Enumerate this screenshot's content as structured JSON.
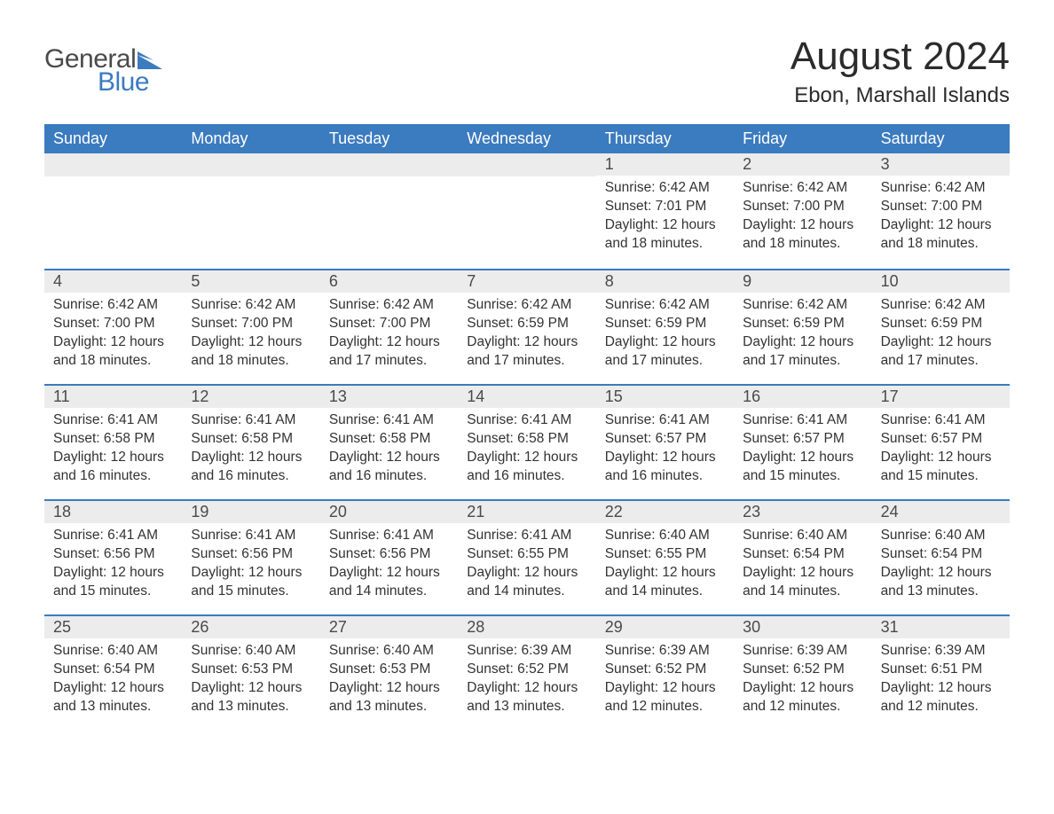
{
  "logo": {
    "text_general": "General",
    "text_blue": "Blue",
    "shape_color": "#3b7bbf"
  },
  "title": "August 2024",
  "location": "Ebon, Marshall Islands",
  "colors": {
    "header_bg": "#3b7bbf",
    "header_text": "#ffffff",
    "daynum_bg": "#ececec",
    "row_border": "#3b7bbf",
    "body_text": "#333333",
    "title_text": "#2b2b2b",
    "background": "#ffffff"
  },
  "day_headers": [
    "Sunday",
    "Monday",
    "Tuesday",
    "Wednesday",
    "Thursday",
    "Friday",
    "Saturday"
  ],
  "weeks": [
    [
      {
        "day": "",
        "sunrise": "",
        "sunset": "",
        "daylight": ""
      },
      {
        "day": "",
        "sunrise": "",
        "sunset": "",
        "daylight": ""
      },
      {
        "day": "",
        "sunrise": "",
        "sunset": "",
        "daylight": ""
      },
      {
        "day": "",
        "sunrise": "",
        "sunset": "",
        "daylight": ""
      },
      {
        "day": "1",
        "sunrise": "Sunrise: 6:42 AM",
        "sunset": "Sunset: 7:01 PM",
        "daylight": "Daylight: 12 hours and 18 minutes."
      },
      {
        "day": "2",
        "sunrise": "Sunrise: 6:42 AM",
        "sunset": "Sunset: 7:00 PM",
        "daylight": "Daylight: 12 hours and 18 minutes."
      },
      {
        "day": "3",
        "sunrise": "Sunrise: 6:42 AM",
        "sunset": "Sunset: 7:00 PM",
        "daylight": "Daylight: 12 hours and 18 minutes."
      }
    ],
    [
      {
        "day": "4",
        "sunrise": "Sunrise: 6:42 AM",
        "sunset": "Sunset: 7:00 PM",
        "daylight": "Daylight: 12 hours and 18 minutes."
      },
      {
        "day": "5",
        "sunrise": "Sunrise: 6:42 AM",
        "sunset": "Sunset: 7:00 PM",
        "daylight": "Daylight: 12 hours and 18 minutes."
      },
      {
        "day": "6",
        "sunrise": "Sunrise: 6:42 AM",
        "sunset": "Sunset: 7:00 PM",
        "daylight": "Daylight: 12 hours and 17 minutes."
      },
      {
        "day": "7",
        "sunrise": "Sunrise: 6:42 AM",
        "sunset": "Sunset: 6:59 PM",
        "daylight": "Daylight: 12 hours and 17 minutes."
      },
      {
        "day": "8",
        "sunrise": "Sunrise: 6:42 AM",
        "sunset": "Sunset: 6:59 PM",
        "daylight": "Daylight: 12 hours and 17 minutes."
      },
      {
        "day": "9",
        "sunrise": "Sunrise: 6:42 AM",
        "sunset": "Sunset: 6:59 PM",
        "daylight": "Daylight: 12 hours and 17 minutes."
      },
      {
        "day": "10",
        "sunrise": "Sunrise: 6:42 AM",
        "sunset": "Sunset: 6:59 PM",
        "daylight": "Daylight: 12 hours and 17 minutes."
      }
    ],
    [
      {
        "day": "11",
        "sunrise": "Sunrise: 6:41 AM",
        "sunset": "Sunset: 6:58 PM",
        "daylight": "Daylight: 12 hours and 16 minutes."
      },
      {
        "day": "12",
        "sunrise": "Sunrise: 6:41 AM",
        "sunset": "Sunset: 6:58 PM",
        "daylight": "Daylight: 12 hours and 16 minutes."
      },
      {
        "day": "13",
        "sunrise": "Sunrise: 6:41 AM",
        "sunset": "Sunset: 6:58 PM",
        "daylight": "Daylight: 12 hours and 16 minutes."
      },
      {
        "day": "14",
        "sunrise": "Sunrise: 6:41 AM",
        "sunset": "Sunset: 6:58 PM",
        "daylight": "Daylight: 12 hours and 16 minutes."
      },
      {
        "day": "15",
        "sunrise": "Sunrise: 6:41 AM",
        "sunset": "Sunset: 6:57 PM",
        "daylight": "Daylight: 12 hours and 16 minutes."
      },
      {
        "day": "16",
        "sunrise": "Sunrise: 6:41 AM",
        "sunset": "Sunset: 6:57 PM",
        "daylight": "Daylight: 12 hours and 15 minutes."
      },
      {
        "day": "17",
        "sunrise": "Sunrise: 6:41 AM",
        "sunset": "Sunset: 6:57 PM",
        "daylight": "Daylight: 12 hours and 15 minutes."
      }
    ],
    [
      {
        "day": "18",
        "sunrise": "Sunrise: 6:41 AM",
        "sunset": "Sunset: 6:56 PM",
        "daylight": "Daylight: 12 hours and 15 minutes."
      },
      {
        "day": "19",
        "sunrise": "Sunrise: 6:41 AM",
        "sunset": "Sunset: 6:56 PM",
        "daylight": "Daylight: 12 hours and 15 minutes."
      },
      {
        "day": "20",
        "sunrise": "Sunrise: 6:41 AM",
        "sunset": "Sunset: 6:56 PM",
        "daylight": "Daylight: 12 hours and 14 minutes."
      },
      {
        "day": "21",
        "sunrise": "Sunrise: 6:41 AM",
        "sunset": "Sunset: 6:55 PM",
        "daylight": "Daylight: 12 hours and 14 minutes."
      },
      {
        "day": "22",
        "sunrise": "Sunrise: 6:40 AM",
        "sunset": "Sunset: 6:55 PM",
        "daylight": "Daylight: 12 hours and 14 minutes."
      },
      {
        "day": "23",
        "sunrise": "Sunrise: 6:40 AM",
        "sunset": "Sunset: 6:54 PM",
        "daylight": "Daylight: 12 hours and 14 minutes."
      },
      {
        "day": "24",
        "sunrise": "Sunrise: 6:40 AM",
        "sunset": "Sunset: 6:54 PM",
        "daylight": "Daylight: 12 hours and 13 minutes."
      }
    ],
    [
      {
        "day": "25",
        "sunrise": "Sunrise: 6:40 AM",
        "sunset": "Sunset: 6:54 PM",
        "daylight": "Daylight: 12 hours and 13 minutes."
      },
      {
        "day": "26",
        "sunrise": "Sunrise: 6:40 AM",
        "sunset": "Sunset: 6:53 PM",
        "daylight": "Daylight: 12 hours and 13 minutes."
      },
      {
        "day": "27",
        "sunrise": "Sunrise: 6:40 AM",
        "sunset": "Sunset: 6:53 PM",
        "daylight": "Daylight: 12 hours and 13 minutes."
      },
      {
        "day": "28",
        "sunrise": "Sunrise: 6:39 AM",
        "sunset": "Sunset: 6:52 PM",
        "daylight": "Daylight: 12 hours and 13 minutes."
      },
      {
        "day": "29",
        "sunrise": "Sunrise: 6:39 AM",
        "sunset": "Sunset: 6:52 PM",
        "daylight": "Daylight: 12 hours and 12 minutes."
      },
      {
        "day": "30",
        "sunrise": "Sunrise: 6:39 AM",
        "sunset": "Sunset: 6:52 PM",
        "daylight": "Daylight: 12 hours and 12 minutes."
      },
      {
        "day": "31",
        "sunrise": "Sunrise: 6:39 AM",
        "sunset": "Sunset: 6:51 PM",
        "daylight": "Daylight: 12 hours and 12 minutes."
      }
    ]
  ]
}
